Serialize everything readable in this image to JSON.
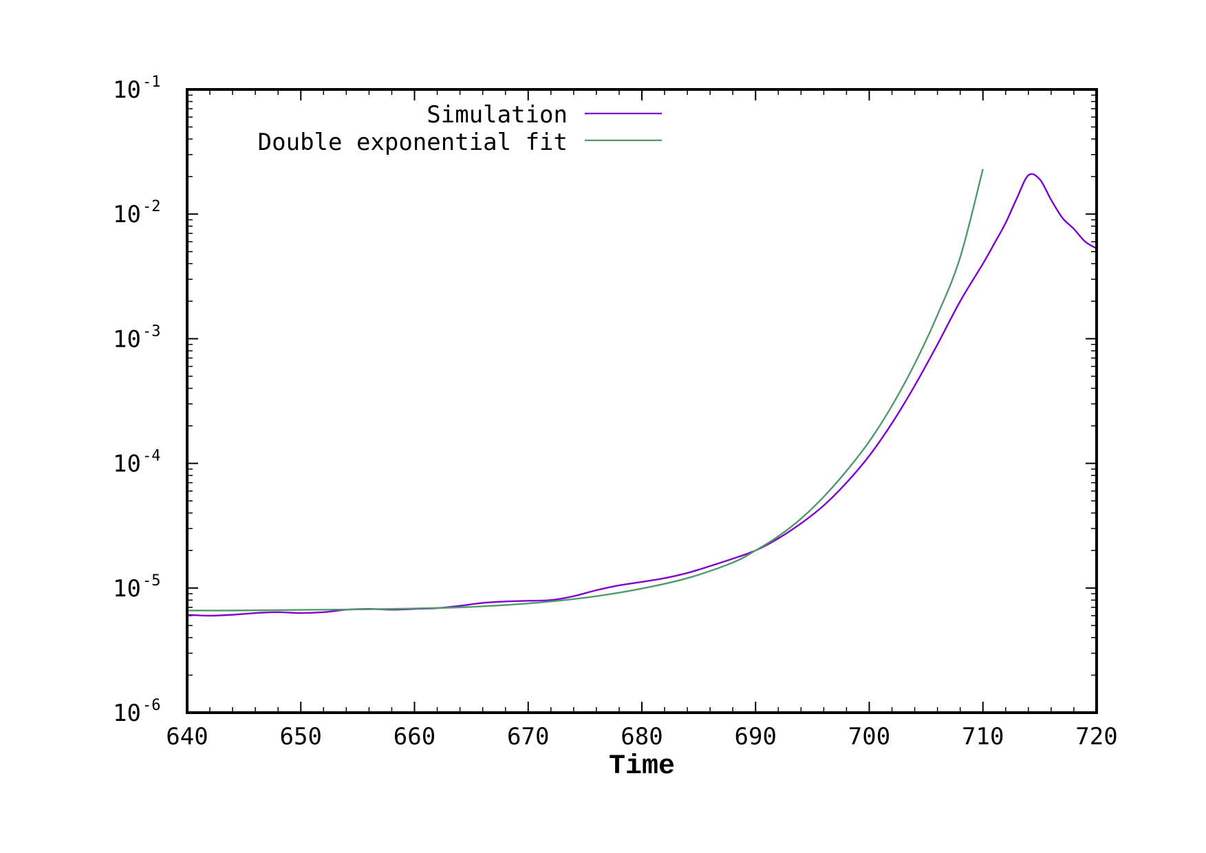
{
  "chart_data": {
    "type": "line",
    "xlabel": "Time",
    "ylabel": "",
    "xlim": [
      640,
      720
    ],
    "ylim": [
      1e-06,
      0.1
    ],
    "yscale": "log",
    "grid": false,
    "legend_position": "top-left",
    "x_ticks": [
      "640",
      "650",
      "660",
      "670",
      "680",
      "690",
      "700",
      "710",
      "720"
    ],
    "y_ticks": [
      {
        "base": "10",
        "exponent": "-6",
        "value": 1e-06
      },
      {
        "base": "10",
        "exponent": "-5",
        "value": 1e-05
      },
      {
        "base": "10",
        "exponent": "-4",
        "value": 0.0001
      },
      {
        "base": "10",
        "exponent": "-3",
        "value": 0.001
      },
      {
        "base": "10",
        "exponent": "-2",
        "value": 0.01
      },
      {
        "base": "10",
        "exponent": "-1",
        "value": 0.1
      }
    ],
    "series": [
      {
        "name": "Simulation",
        "color": "#8000d0",
        "x": [
          640,
          642,
          644,
          646,
          648,
          650,
          652,
          654,
          656,
          658,
          660,
          662,
          664,
          666,
          668,
          670,
          672,
          674,
          676,
          678,
          680,
          682,
          684,
          686,
          688,
          690,
          692,
          694,
          696,
          698,
          700,
          702,
          704,
          706,
          708,
          710,
          711,
          712,
          713,
          714,
          715,
          716,
          717,
          718,
          719,
          720
        ],
        "y": [
          6.1e-06,
          6e-06,
          6.1e-06,
          6.3e-06,
          6.4e-06,
          6.3e-06,
          6.4e-06,
          6.7e-06,
          6.8e-06,
          6.7e-06,
          6.8e-06,
          6.9e-06,
          7.2e-06,
          7.6e-06,
          7.8e-06,
          7.9e-06,
          8e-06,
          8.6e-06,
          9.6e-06,
          1.05e-05,
          1.12e-05,
          1.2e-05,
          1.32e-05,
          1.5e-05,
          1.72e-05,
          2e-05,
          2.5e-05,
          3.3e-05,
          4.6e-05,
          7e-05,
          0.000115,
          0.00021,
          0.00042,
          0.0009,
          0.002,
          0.004,
          0.0058,
          0.0085,
          0.0135,
          0.0205,
          0.019,
          0.013,
          0.0093,
          0.0076,
          0.006,
          0.0053
        ]
      },
      {
        "name": "Double exponential fit",
        "color": "#4e9a6a",
        "x": [
          640,
          644,
          648,
          652,
          656,
          660,
          664,
          668,
          672,
          676,
          680,
          684,
          688,
          690,
          692,
          694,
          696,
          698,
          700,
          702,
          704,
          706,
          708,
          710
        ],
        "y": [
          6.6e-06,
          6.6e-06,
          6.65e-06,
          6.7e-06,
          6.75e-06,
          6.85e-06,
          7e-06,
          7.3e-06,
          7.8e-06,
          8.6e-06,
          9.9e-06,
          1.2e-05,
          1.6e-05,
          2e-05,
          2.6e-05,
          3.6e-05,
          5.4e-05,
          8.7e-05,
          0.00015,
          0.00029,
          0.00063,
          0.00155,
          0.0045,
          0.023
        ]
      }
    ]
  }
}
